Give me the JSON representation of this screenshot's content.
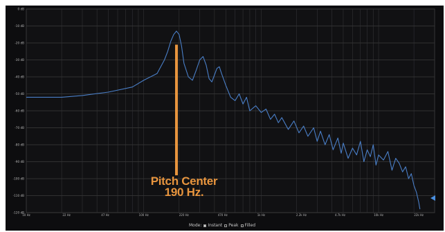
{
  "chart_data": {
    "type": "line",
    "title": "",
    "xlabel": "",
    "ylabel": "",
    "x_scale": "log",
    "xlim": [
      10,
      30000
    ],
    "ylim": [
      -120,
      0
    ],
    "grid": true,
    "legend": "none",
    "y_ticks": [
      "0 dB",
      "-10 dB",
      "-20 dB",
      "-30 dB",
      "-40 dB",
      "-50 dB",
      "-60 dB",
      "-70 dB",
      "-80 dB",
      "-90 dB",
      "-100 dB",
      "-110 dB",
      "-120 dB"
    ],
    "y_tick_values": [
      0,
      -10,
      -20,
      -30,
      -40,
      -50,
      -60,
      -70,
      -80,
      -90,
      -100,
      -110,
      -120
    ],
    "x_ticks": [
      "10 Hz",
      "22 Hz",
      "47 Hz",
      "100 Hz",
      "220 Hz",
      "470 Hz",
      "1k Hz",
      "2.2k Hz",
      "4.7k Hz",
      "10k Hz",
      "22k Hz"
    ],
    "x_tick_values": [
      10,
      22,
      47,
      100,
      220,
      470,
      1000,
      2200,
      4700,
      10000,
      22000
    ],
    "series": [
      {
        "x": [
          10,
          20,
          30,
          50,
          80,
          100,
          130,
          150,
          160,
          170,
          180,
          190,
          200,
          210,
          220,
          240,
          260,
          280,
          300,
          320,
          340,
          360,
          380,
          400,
          420,
          440,
          460,
          500,
          550,
          600,
          650,
          700,
          750,
          800,
          900,
          1000,
          1100,
          1200,
          1300,
          1400,
          1500,
          1700,
          1900,
          2100,
          2300,
          2500,
          2800,
          3000,
          3200,
          3500,
          3800,
          4100,
          4500,
          4800,
          5000,
          5500,
          6000,
          6500,
          7000,
          7500,
          8000,
          8500,
          9000,
          9500,
          10000,
          11000,
          12000,
          13000,
          14000,
          15000,
          16000,
          17000,
          18000,
          19000,
          20000,
          21000,
          22000,
          22500
        ],
        "y": [
          -52,
          -52,
          -51,
          -49,
          -46,
          -42,
          -38,
          -30,
          -25,
          -19,
          -15,
          -13,
          -15,
          -22,
          -32,
          -40,
          -42,
          -36,
          -30,
          -28,
          -33,
          -41,
          -43,
          -39,
          -35,
          -34,
          -38,
          -45,
          -52,
          -54,
          -50,
          -56,
          -52,
          -60,
          -57,
          -61,
          -59,
          -65,
          -62,
          -67,
          -64,
          -71,
          -66,
          -73,
          -69,
          -75,
          -70,
          -78,
          -72,
          -80,
          -74,
          -83,
          -76,
          -85,
          -79,
          -88,
          -82,
          -86,
          -78,
          -90,
          -83,
          -87,
          -80,
          -92,
          -86,
          -89,
          -84,
          -95,
          -88,
          -91,
          -96,
          -93,
          -100,
          -97,
          -104,
          -108,
          -114,
          -118
        ]
      }
    ],
    "annotation": {
      "text_line1": "Pitch Center",
      "text_line2": "190 Hz.",
      "x": 190,
      "y_top": -21,
      "y_bottom": -98,
      "color": "#e8953e"
    },
    "line_color": "#4a7fc8"
  },
  "mode_bar": {
    "label": "Mode:",
    "options": [
      {
        "label": "Instant",
        "checked": true
      },
      {
        "label": "Peak",
        "checked": false
      },
      {
        "label": "Filled",
        "checked": false
      }
    ]
  }
}
